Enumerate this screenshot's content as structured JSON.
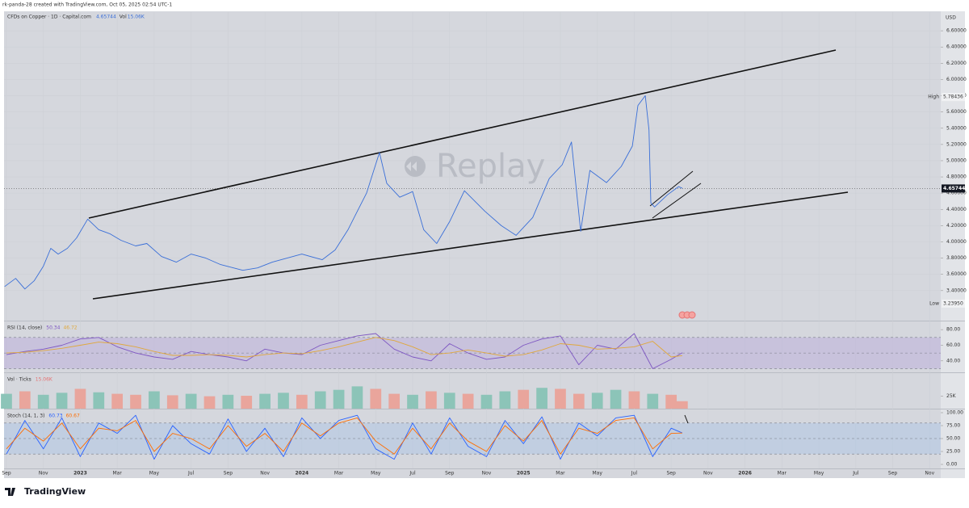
{
  "header": "rk-panda-28 created with TradingView.com, Oct 05, 2025 02:54 UTC-1",
  "footer": "TradingView",
  "chart_data": [
    {
      "type": "line",
      "title": "CFDs on Copper · 1D · Capital.com",
      "currency": "USD",
      "watermark": "Replay",
      "volume_text": "Vol",
      "color": "#3a6fd8",
      "last_price": 4.65744,
      "high_text": "High",
      "high": 5.78436,
      "low_text": "Low",
      "low": {
        "value": 3.2395,
        "label": "3.23950"
      },
      "x": [
        -0.1,
        0.5,
        1,
        1.5,
        2,
        2.4,
        2.8,
        3.3,
        3.8,
        4.4,
        5,
        5.6,
        6.2,
        7,
        7.6,
        8.4,
        9.2,
        10,
        10.8,
        11.6,
        12.8,
        13.6,
        14.4,
        15.2,
        16,
        17.1,
        17.8,
        18.5,
        18.9,
        19.5,
        20.2,
        20.6,
        21.3,
        22,
        22.6,
        23.3,
        24,
        24.8,
        25.9,
        26.8,
        27.6,
        28.5,
        29.4,
        30.1,
        30.6,
        31.1,
        31.6,
        32.5,
        33.3,
        33.9,
        34.2,
        34.6,
        34.8,
        34.9,
        35.1,
        35.8,
        36.4,
        36.6
      ],
      "values": [
        3.45,
        3.55,
        3.42,
        3.52,
        3.7,
        3.92,
        3.85,
        3.92,
        4.05,
        4.28,
        4.15,
        4.1,
        4.02,
        3.95,
        3.98,
        3.82,
        3.75,
        3.85,
        3.8,
        3.72,
        3.65,
        3.68,
        3.75,
        3.8,
        3.85,
        3.78,
        3.9,
        4.15,
        4.33,
        4.6,
        5.1,
        4.72,
        4.55,
        4.62,
        4.15,
        3.98,
        4.25,
        4.63,
        4.38,
        4.2,
        4.08,
        4.3,
        4.78,
        4.95,
        5.23,
        4.13,
        4.88,
        4.73,
        4.93,
        5.18,
        5.68,
        5.8,
        5.38,
        4.48,
        4.43,
        4.58,
        4.68,
        4.66
      ],
      "xlim": [
        -0.13,
        50.6
      ],
      "xticks": [
        {
          "value": 0,
          "label": "Sep"
        },
        {
          "value": 2,
          "label": "Nov"
        },
        {
          "value": 4,
          "label": "2023"
        },
        {
          "value": 6,
          "label": "Mar"
        },
        {
          "value": 8,
          "label": "May"
        },
        {
          "value": 10,
          "label": "Jul"
        },
        {
          "value": 12,
          "label": "Sep"
        },
        {
          "value": 14,
          "label": "Nov"
        },
        {
          "value": 16,
          "label": "2024"
        },
        {
          "value": 18,
          "label": "Mar"
        },
        {
          "value": 20,
          "label": "May"
        },
        {
          "value": 22,
          "label": "Jul"
        },
        {
          "value": 24,
          "label": "Sep"
        },
        {
          "value": 26,
          "label": "Nov"
        },
        {
          "value": 28,
          "label": "2025"
        },
        {
          "value": 30,
          "label": "Mar"
        },
        {
          "value": 32,
          "label": "May"
        },
        {
          "value": 34,
          "label": "Jul"
        },
        {
          "value": 36,
          "label": "Sep"
        },
        {
          "value": 38,
          "label": "Nov"
        },
        {
          "value": 40,
          "label": "2026"
        },
        {
          "value": 42,
          "label": "Mar"
        },
        {
          "value": 44,
          "label": "May"
        },
        {
          "value": 46,
          "label": "Jul"
        },
        {
          "value": 48,
          "label": "Sep"
        },
        {
          "value": 50,
          "label": "Nov"
        }
      ],
      "ylim": [
        3.03,
        6.83
      ],
      "yticks": [
        {
          "value": 3.4,
          "label": "3.40000"
        },
        {
          "value": 3.6,
          "label": "3.60000"
        },
        {
          "value": 3.8,
          "label": "3.80000"
        },
        {
          "value": 4.0,
          "label": "4.00000"
        },
        {
          "value": 4.2,
          "label": "4.20000"
        },
        {
          "value": 4.4,
          "label": "4.40000"
        },
        {
          "value": 4.6,
          "label": "4.60000"
        },
        {
          "value": 4.8,
          "label": "4.80000"
        },
        {
          "value": 5.0,
          "label": "5.00000"
        },
        {
          "value": 5.2,
          "label": "5.20000"
        },
        {
          "value": 5.4,
          "label": "5.40000"
        },
        {
          "value": 5.6,
          "label": "5.60000"
        },
        {
          "value": 5.8,
          "label": "5.80000"
        },
        {
          "value": 6.0,
          "label": "6.00000"
        },
        {
          "value": 6.2,
          "label": "6.20000"
        },
        {
          "value": 6.4,
          "label": "6.40000"
        },
        {
          "value": 6.6,
          "label": "6.60000"
        }
      ],
      "grid": true
    },
    {
      "type": "line",
      "title": "RSI (14, close)",
      "x": [
        0,
        1,
        2,
        3,
        4,
        5,
        6,
        7,
        8,
        9,
        10,
        11,
        12,
        13,
        14,
        15,
        16,
        17,
        18,
        19,
        20,
        21,
        22,
        23,
        24,
        25,
        26,
        27,
        28,
        29,
        30,
        31,
        32,
        33,
        34,
        35,
        36,
        36.6
      ],
      "series": [
        {
          "color": "#7e57c2",
          "values": [
            48,
            52,
            55,
            60,
            68,
            70,
            58,
            50,
            45,
            42,
            52,
            48,
            45,
            40,
            55,
            50,
            48,
            60,
            66,
            72,
            75,
            55,
            45,
            40,
            62,
            50,
            42,
            45,
            60,
            68,
            72,
            35,
            60,
            55,
            75,
            30,
            42,
            50.34
          ]
        },
        {
          "color": "#e0a83c",
          "values": [
            50,
            51,
            53,
            56,
            60,
            64,
            62,
            58,
            52,
            47,
            47,
            48,
            47,
            45,
            48,
            50,
            49,
            53,
            58,
            64,
            70,
            66,
            58,
            48,
            50,
            54,
            50,
            46,
            48,
            54,
            62,
            60,
            55,
            56,
            58,
            65,
            45,
            46.72
          ]
        }
      ],
      "bands": [
        30,
        50,
        70
      ],
      "band_color": "#b9a8dc",
      "xlim": [
        -0.13,
        50.6
      ],
      "ylim": [
        25.3,
        90.5
      ],
      "yticks": [
        {
          "value": 80,
          "label": "80.00"
        },
        {
          "value": 60,
          "label": "60.00"
        },
        {
          "value": 40,
          "label": "40.00"
        }
      ]
    },
    {
      "type": "bar",
      "title": "Vol · Ticks",
      "x": [
        0,
        1,
        2,
        3,
        4,
        5,
        6,
        7,
        8,
        9,
        10,
        11,
        12,
        13,
        14,
        15,
        16,
        17,
        18,
        19,
        20,
        21,
        22,
        23,
        24,
        25,
        26,
        27,
        28,
        29,
        30,
        31,
        32,
        33,
        34,
        35,
        36,
        36.6
      ],
      "values": [
        30,
        35,
        28,
        32,
        40,
        33,
        30,
        28,
        35,
        27,
        30,
        25,
        28,
        26,
        30,
        32,
        28,
        35,
        38,
        45,
        40,
        30,
        28,
        35,
        32,
        30,
        28,
        35,
        38,
        42,
        40,
        30,
        32,
        38,
        35,
        30,
        28,
        15.06
      ],
      "value_labels": [
        null,
        null,
        null,
        null,
        null,
        null,
        null,
        null,
        null,
        null,
        null,
        null,
        null,
        null,
        null,
        null,
        null,
        null,
        null,
        null,
        null,
        null,
        null,
        null,
        null,
        null,
        null,
        null,
        null,
        null,
        null,
        null,
        null,
        null,
        null,
        null,
        null,
        "15.06K"
      ],
      "colors": [
        "#8cc4b8",
        "#e9a59c",
        "#8cc4b8",
        "#8cc4b8",
        "#e9a59c",
        "#8cc4b8",
        "#e9a59c",
        "#e9a59c",
        "#8cc4b8",
        "#e9a59c",
        "#8cc4b8",
        "#e9a59c",
        "#8cc4b8",
        "#e9a59c",
        "#8cc4b8",
        "#8cc4b8",
        "#e9a59c",
        "#8cc4b8",
        "#8cc4b8",
        "#8cc4b8",
        "#e9a59c",
        "#e9a59c",
        "#8cc4b8",
        "#e9a59c",
        "#8cc4b8",
        "#e9a59c",
        "#8cc4b8",
        "#8cc4b8",
        "#e9a59c",
        "#8cc4b8",
        "#e9a59c",
        "#e9a59c",
        "#8cc4b8",
        "#8cc4b8",
        "#e9a59c",
        "#8cc4b8",
        "#e9a59c",
        "#e9a59c"
      ],
      "xlim": [
        -0.13,
        50.6
      ],
      "ylim": [
        0,
        71.7
      ],
      "yticks": [
        {
          "value": 25,
          "label": "25K"
        }
      ]
    },
    {
      "type": "line",
      "title": "Stoch (14, 1, 3)",
      "x": [
        0,
        1,
        2,
        3,
        4,
        5,
        6,
        7,
        8,
        9,
        10,
        11,
        12,
        13,
        14,
        15,
        16,
        17,
        18,
        19,
        20,
        21,
        22,
        23,
        24,
        25,
        26,
        27,
        28,
        29,
        30,
        31,
        32,
        33,
        34,
        35,
        36,
        36.6
      ],
      "series": [
        {
          "color": "#2962ff",
          "values": [
            20,
            85,
            30,
            90,
            15,
            80,
            60,
            95,
            10,
            75,
            40,
            20,
            88,
            25,
            70,
            15,
            90,
            50,
            85,
            95,
            30,
            10,
            80,
            20,
            90,
            35,
            15,
            85,
            40,
            92,
            10,
            80,
            55,
            90,
            95,
            15,
            70,
            60.73
          ]
        },
        {
          "color": "#ff6d00",
          "values": [
            30,
            70,
            45,
            80,
            30,
            70,
            65,
            85,
            25,
            60,
            50,
            30,
            75,
            35,
            60,
            25,
            80,
            55,
            80,
            90,
            45,
            20,
            70,
            30,
            80,
            45,
            25,
            75,
            45,
            85,
            20,
            70,
            60,
            85,
            90,
            30,
            60,
            60.67
          ]
        }
      ],
      "bands": [
        20,
        50,
        80
      ],
      "band_color": "#a9c3e6",
      "xlim": [
        -0.13,
        50.6
      ],
      "ylim": [
        -7.8,
        106.25
      ],
      "yticks": [
        {
          "value": 100,
          "label": "100.00"
        },
        {
          "value": 75,
          "label": "75.00"
        },
        {
          "value": 50,
          "label": "50.00"
        },
        {
          "value": 25,
          "label": "25.00"
        },
        {
          "value": 0,
          "label": "0.00"
        }
      ]
    }
  ]
}
